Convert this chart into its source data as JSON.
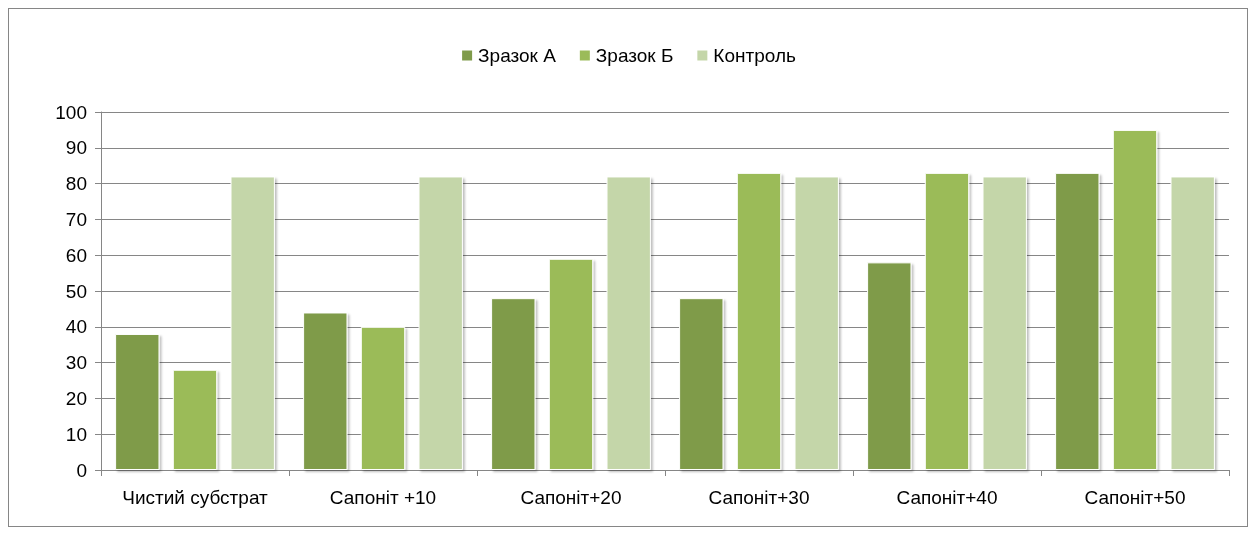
{
  "chart_data": {
    "type": "bar",
    "categories": [
      "Чистий субстрат",
      "Сапоніт +10",
      "Сапоніт+20",
      "Сапоніт+30",
      "Сапоніт+40",
      "Сапоніт+50"
    ],
    "series": [
      {
        "name": "Зразок А",
        "color": "#7f9b4a",
        "values": [
          38,
          44,
          48,
          48,
          58,
          83
        ]
      },
      {
        "name": "Зразок Б",
        "color": "#9bbb59",
        "values": [
          28,
          40,
          59,
          83,
          83,
          95
        ]
      },
      {
        "name": "Контроль",
        "color": "#c4d6a9",
        "values": [
          82,
          82,
          82,
          82,
          82,
          82
        ]
      }
    ],
    "ylim": [
      0,
      100
    ],
    "yticks": [
      0,
      10,
      20,
      30,
      40,
      50,
      60,
      70,
      80,
      90,
      100
    ],
    "grid": "y",
    "legend": "top"
  }
}
